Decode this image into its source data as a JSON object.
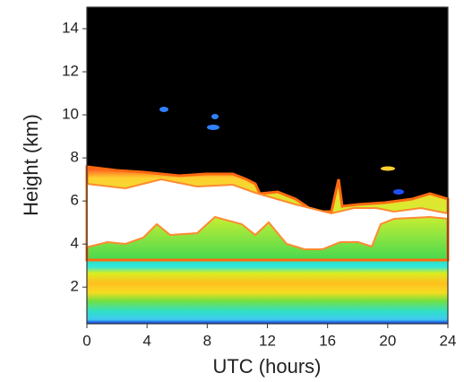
{
  "chart_data": {
    "type": "contour",
    "x_label": "UTC (hours)",
    "y_label": "Height (km)",
    "xlim": [
      0,
      24
    ],
    "ylim": [
      0.3,
      15
    ],
    "xticks": [
      0,
      4,
      8,
      12,
      16,
      20,
      24
    ],
    "yticks": [
      2,
      4,
      6,
      8,
      10,
      12,
      14
    ]
  }
}
